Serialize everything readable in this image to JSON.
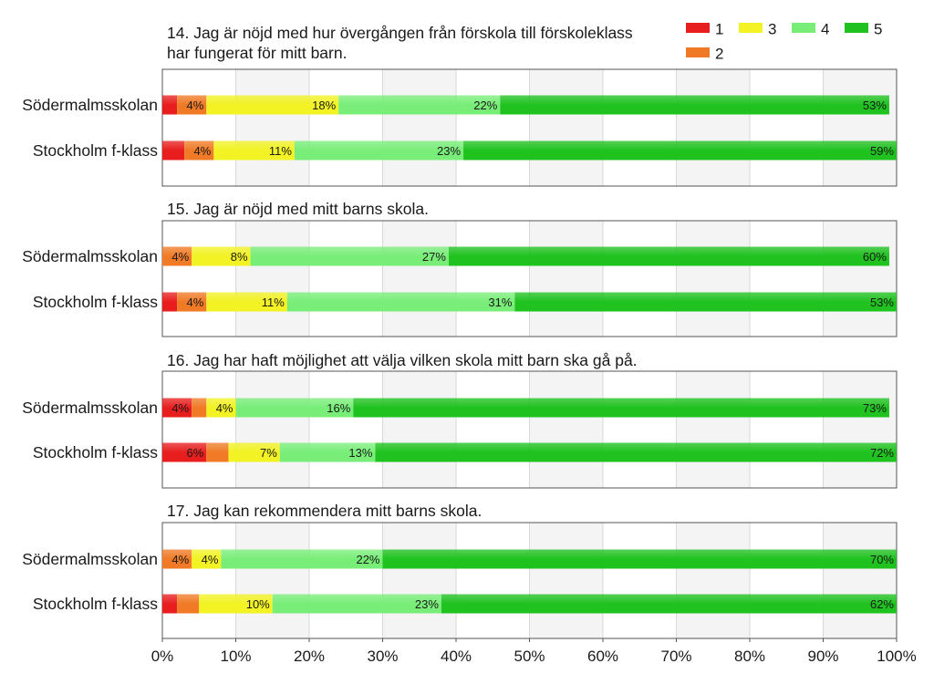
{
  "chart_data": {
    "type": "bar",
    "orientation": "horizontal",
    "stacked": true,
    "xlim": [
      0,
      100
    ],
    "x_ticks": [
      "0%",
      "10%",
      "20%",
      "30%",
      "40%",
      "50%",
      "60%",
      "70%",
      "80%",
      "90%",
      "100%"
    ],
    "legend": {
      "position": "top-right",
      "entries": [
        {
          "label": "1",
          "color": "#e81e1e"
        },
        {
          "label": "2",
          "color": "#f07a26"
        },
        {
          "label": "3",
          "color": "#f2f224"
        },
        {
          "label": "4",
          "color": "#78ee78"
        },
        {
          "label": "5",
          "color": "#1fc21f"
        }
      ]
    },
    "panels": [
      {
        "title": "14. Jag är nöjd med hur övergången från förskola till förskoleklass har fungerat för mitt barn.",
        "title_lines": [
          "14. Jag är nöjd med hur övergången från förskola till förskoleklass",
          "har fungerat för mitt barn."
        ],
        "rows": [
          {
            "label": "Södermalmsskolan",
            "values": [
              2,
              4,
              18,
              22,
              53
            ],
            "labels": [
              "",
              "4%",
              "18%",
              "22%",
              "53%"
            ]
          },
          {
            "label": "Stockholm f-klass",
            "values": [
              3,
              4,
              11,
              23,
              59
            ],
            "labels": [
              "",
              "4%",
              "11%",
              "23%",
              "59%"
            ]
          }
        ]
      },
      {
        "title": "15. Jag är nöjd med mitt barns skola.",
        "title_lines": [
          "15. Jag är nöjd med mitt barns skola."
        ],
        "rows": [
          {
            "label": "Södermalmsskolan",
            "values": [
              0,
              4,
              8,
              27,
              60
            ],
            "labels": [
              "",
              "4%",
              "8%",
              "27%",
              "60%"
            ]
          },
          {
            "label": "Stockholm f-klass",
            "values": [
              2,
              4,
              11,
              31,
              53
            ],
            "labels": [
              "",
              "4%",
              "11%",
              "31%",
              "53%"
            ]
          }
        ]
      },
      {
        "title": "16. Jag har haft möjlighet att välja vilken skola mitt barn ska gå på.",
        "title_lines": [
          "16. Jag har haft möjlighet att välja vilken skola mitt barn ska gå på."
        ],
        "rows": [
          {
            "label": "Södermalmsskolan",
            "values": [
              4,
              2,
              4,
              16,
              73
            ],
            "labels": [
              "4%",
              "",
              "4%",
              "16%",
              "73%"
            ]
          },
          {
            "label": "Stockholm f-klass",
            "values": [
              6,
              3,
              7,
              13,
              72
            ],
            "labels": [
              "6%",
              "",
              "7%",
              "13%",
              "72%"
            ]
          }
        ]
      },
      {
        "title": "17. Jag kan rekommendera mitt barns skola.",
        "title_lines": [
          "17. Jag kan rekommendera mitt barns skola."
        ],
        "rows": [
          {
            "label": "Södermalmsskolan",
            "values": [
              0,
              4,
              4,
              22,
              70
            ],
            "labels": [
              "",
              "4%",
              "4%",
              "22%",
              "70%"
            ]
          },
          {
            "label": "Stockholm f-klass",
            "values": [
              2,
              3,
              10,
              23,
              62
            ],
            "labels": [
              "",
              "",
              "10%",
              "23%",
              "62%"
            ]
          }
        ]
      }
    ]
  }
}
